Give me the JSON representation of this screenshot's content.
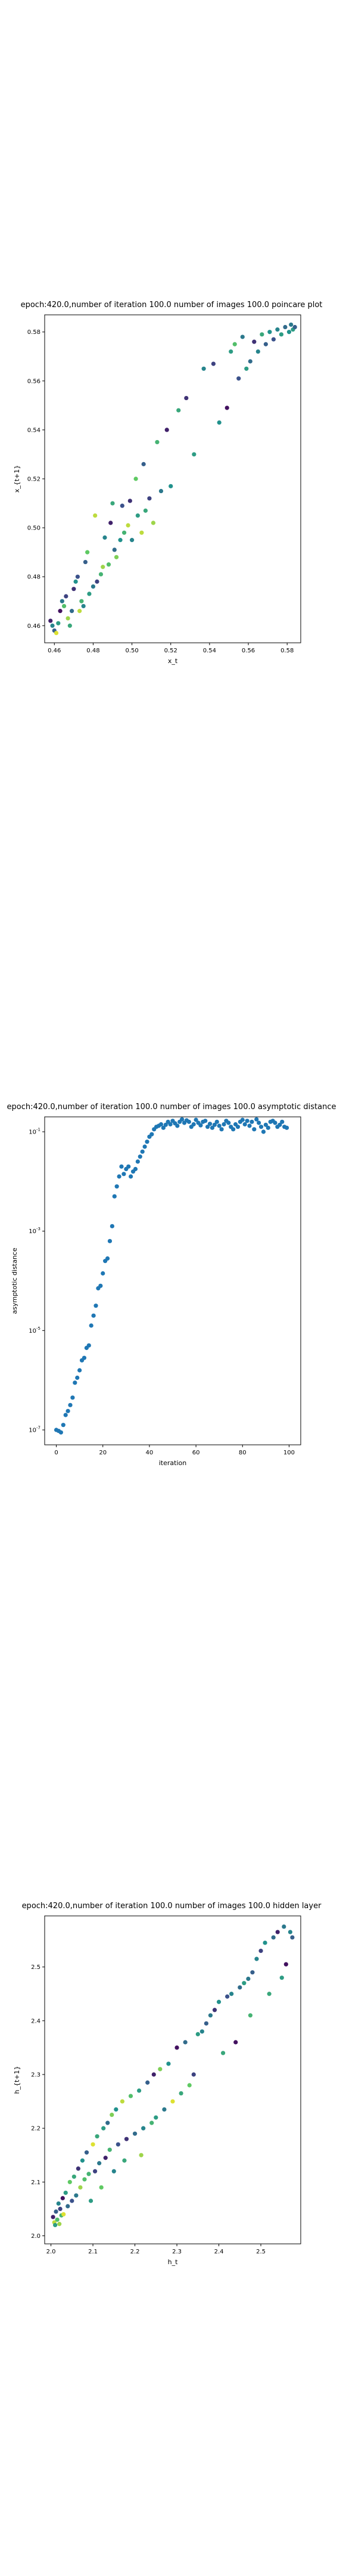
{
  "chart_data": [
    {
      "type": "scatter",
      "title": "epoch:420.0,number of iteration 100.0 number of images 100.0 poincare plot",
      "xlabel": "x_t",
      "ylabel": "x_{t+1}",
      "xlim": [
        0.455,
        0.587
      ],
      "ylim": [
        0.453,
        0.587
      ],
      "xticks": [
        "0.46",
        "0.48",
        "0.50",
        "0.52",
        "0.54",
        "0.56",
        "0.58"
      ],
      "yticks": [
        "0.46",
        "0.48",
        "0.50",
        "0.52",
        "0.54",
        "0.56",
        "0.58"
      ],
      "grid": false,
      "colormap": [
        "#440154",
        "#3b528b",
        "#21918c",
        "#5ec962",
        "#fde725"
      ],
      "points": [
        {
          "x": 0.458,
          "y": 0.462,
          "c": 0.1
        },
        {
          "x": 0.459,
          "y": 0.46,
          "c": 0.45
        },
        {
          "x": 0.46,
          "y": 0.458,
          "c": 0.3
        },
        {
          "x": 0.461,
          "y": 0.457,
          "c": 0.95
        },
        {
          "x": 0.462,
          "y": 0.461,
          "c": 0.55
        },
        {
          "x": 0.463,
          "y": 0.466,
          "c": 0.05
        },
        {
          "x": 0.464,
          "y": 0.47,
          "c": 0.4
        },
        {
          "x": 0.465,
          "y": 0.468,
          "c": 0.7
        },
        {
          "x": 0.466,
          "y": 0.472,
          "c": 0.2
        },
        {
          "x": 0.467,
          "y": 0.463,
          "c": 0.85
        },
        {
          "x": 0.468,
          "y": 0.46,
          "c": 0.6
        },
        {
          "x": 0.469,
          "y": 0.466,
          "c": 0.35
        },
        {
          "x": 0.47,
          "y": 0.475,
          "c": 0.15
        },
        {
          "x": 0.471,
          "y": 0.478,
          "c": 0.5
        },
        {
          "x": 0.472,
          "y": 0.48,
          "c": 0.25
        },
        {
          "x": 0.473,
          "y": 0.466,
          "c": 0.9
        },
        {
          "x": 0.474,
          "y": 0.47,
          "c": 0.65
        },
        {
          "x": 0.475,
          "y": 0.468,
          "c": 0.45
        },
        {
          "x": 0.476,
          "y": 0.486,
          "c": 0.3
        },
        {
          "x": 0.477,
          "y": 0.49,
          "c": 0.75
        },
        {
          "x": 0.478,
          "y": 0.473,
          "c": 0.55
        },
        {
          "x": 0.48,
          "y": 0.476,
          "c": 0.4
        },
        {
          "x": 0.481,
          "y": 0.505,
          "c": 0.9
        },
        {
          "x": 0.482,
          "y": 0.478,
          "c": 0.2
        },
        {
          "x": 0.484,
          "y": 0.481,
          "c": 0.65
        },
        {
          "x": 0.485,
          "y": 0.484,
          "c": 0.85
        },
        {
          "x": 0.486,
          "y": 0.496,
          "c": 0.45
        },
        {
          "x": 0.488,
          "y": 0.485,
          "c": 0.7
        },
        {
          "x": 0.489,
          "y": 0.502,
          "c": 0.1
        },
        {
          "x": 0.49,
          "y": 0.51,
          "c": 0.6
        },
        {
          "x": 0.491,
          "y": 0.491,
          "c": 0.35
        },
        {
          "x": 0.492,
          "y": 0.488,
          "c": 0.8
        },
        {
          "x": 0.494,
          "y": 0.495,
          "c": 0.5
        },
        {
          "x": 0.495,
          "y": 0.509,
          "c": 0.25
        },
        {
          "x": 0.496,
          "y": 0.498,
          "c": 0.65
        },
        {
          "x": 0.498,
          "y": 0.501,
          "c": 0.9
        },
        {
          "x": 0.499,
          "y": 0.511,
          "c": 0.15
        },
        {
          "x": 0.5,
          "y": 0.495,
          "c": 0.45
        },
        {
          "x": 0.502,
          "y": 0.52,
          "c": 0.75
        },
        {
          "x": 0.503,
          "y": 0.505,
          "c": 0.55
        },
        {
          "x": 0.505,
          "y": 0.498,
          "c": 0.9
        },
        {
          "x": 0.506,
          "y": 0.526,
          "c": 0.3
        },
        {
          "x": 0.507,
          "y": 0.507,
          "c": 0.6
        },
        {
          "x": 0.509,
          "y": 0.512,
          "c": 0.2
        },
        {
          "x": 0.511,
          "y": 0.502,
          "c": 0.85
        },
        {
          "x": 0.513,
          "y": 0.535,
          "c": 0.65
        },
        {
          "x": 0.515,
          "y": 0.515,
          "c": 0.4
        },
        {
          "x": 0.518,
          "y": 0.54,
          "c": 0.1
        },
        {
          "x": 0.52,
          "y": 0.517,
          "c": 0.5
        },
        {
          "x": 0.524,
          "y": 0.548,
          "c": 0.6
        },
        {
          "x": 0.528,
          "y": 0.553,
          "c": 0.15
        },
        {
          "x": 0.532,
          "y": 0.53,
          "c": 0.55
        },
        {
          "x": 0.537,
          "y": 0.565,
          "c": 0.45
        },
        {
          "x": 0.542,
          "y": 0.567,
          "c": 0.2
        },
        {
          "x": 0.545,
          "y": 0.543,
          "c": 0.5
        },
        {
          "x": 0.549,
          "y": 0.549,
          "c": 0.05
        },
        {
          "x": 0.551,
          "y": 0.572,
          "c": 0.55
        },
        {
          "x": 0.553,
          "y": 0.575,
          "c": 0.7
        },
        {
          "x": 0.555,
          "y": 0.561,
          "c": 0.25
        },
        {
          "x": 0.557,
          "y": 0.578,
          "c": 0.4
        },
        {
          "x": 0.559,
          "y": 0.565,
          "c": 0.55
        },
        {
          "x": 0.561,
          "y": 0.568,
          "c": 0.35
        },
        {
          "x": 0.563,
          "y": 0.576,
          "c": 0.15
        },
        {
          "x": 0.565,
          "y": 0.572,
          "c": 0.45
        },
        {
          "x": 0.567,
          "y": 0.579,
          "c": 0.6
        },
        {
          "x": 0.569,
          "y": 0.575,
          "c": 0.3
        },
        {
          "x": 0.571,
          "y": 0.58,
          "c": 0.5
        },
        {
          "x": 0.573,
          "y": 0.577,
          "c": 0.25
        },
        {
          "x": 0.575,
          "y": 0.581,
          "c": 0.45
        },
        {
          "x": 0.577,
          "y": 0.579,
          "c": 0.55
        },
        {
          "x": 0.579,
          "y": 0.582,
          "c": 0.35
        },
        {
          "x": 0.581,
          "y": 0.58,
          "c": 0.5
        },
        {
          "x": 0.582,
          "y": 0.583,
          "c": 0.4
        },
        {
          "x": 0.583,
          "y": 0.581,
          "c": 0.55
        },
        {
          "x": 0.584,
          "y": 0.582,
          "c": 0.3
        }
      ]
    },
    {
      "type": "scatter",
      "title": "epoch:420.0,number of iteration 100.0  number of images 100.0 asymptotic distance",
      "xlabel": "iteration",
      "ylabel": "asymptotic distance",
      "xlim": [
        -5,
        105
      ],
      "ylim_log10": [
        -7.3,
        -0.7
      ],
      "yscale": "log",
      "xticks": [
        "0",
        "20",
        "40",
        "60",
        "80",
        "100"
      ],
      "yticks": [
        "10^-7",
        "10^-5",
        "10^-3",
        "10^-1"
      ],
      "grid": false,
      "marker_color": "#1f77b4",
      "log10_values": [
        -7.0,
        -7.02,
        -7.05,
        -6.9,
        -6.7,
        -6.62,
        -6.5,
        -6.35,
        -6.05,
        -5.95,
        -5.8,
        -5.6,
        -5.55,
        -5.35,
        -5.3,
        -4.9,
        -4.7,
        -4.5,
        -4.15,
        -4.1,
        -3.85,
        -3.6,
        -3.55,
        -3.2,
        -2.9,
        -2.3,
        -2.1,
        -1.9,
        -1.7,
        -1.85,
        -1.75,
        -1.7,
        -1.9,
        -1.8,
        -1.75,
        -1.6,
        -1.5,
        -1.4,
        -1.3,
        -1.2,
        -1.1,
        -1.05,
        -0.95,
        -0.9,
        -0.88,
        -0.85,
        -0.92,
        -0.86,
        -0.8,
        -0.85,
        -0.78,
        -0.83,
        -0.88,
        -0.8,
        -0.75,
        -0.82,
        -0.77,
        -0.8,
        -0.9,
        -0.85,
        -0.76,
        -0.82,
        -0.87,
        -0.8,
        -0.78,
        -0.9,
        -0.84,
        -0.92,
        -0.86,
        -0.8,
        -0.88,
        -0.95,
        -0.85,
        -0.78,
        -0.82,
        -0.9,
        -0.95,
        -0.85,
        -0.9,
        -0.8,
        -0.76,
        -0.85,
        -0.78,
        -0.88,
        -0.8,
        -0.95,
        -0.75,
        -0.82,
        -0.9,
        -1.0,
        -0.86,
        -0.92,
        -0.8,
        -0.78,
        -0.82,
        -0.9,
        -0.86,
        -0.8,
        -0.9,
        -0.92
      ]
    },
    {
      "type": "scatter",
      "title": "epoch:420.0,number of iteration 100.0  number of images 100.0 hidden layer",
      "xlabel": "h_t",
      "ylabel": "h_{t+1}",
      "xlim": [
        1.985,
        2.595
      ],
      "ylim": [
        1.985,
        2.595
      ],
      "xticks": [
        "2.0",
        "2.1",
        "2.2",
        "2.3",
        "2.4",
        "2.5"
      ],
      "yticks": [
        "2.0",
        "2.1",
        "2.2",
        "2.3",
        "2.4",
        "2.5"
      ],
      "grid": false,
      "colormap": [
        "#440154",
        "#3b528b",
        "#21918c",
        "#5ec962",
        "#fde725"
      ],
      "points": [
        {
          "x": 2.005,
          "y": 2.035,
          "c": 0.1
        },
        {
          "x": 2.008,
          "y": 2.025,
          "c": 0.9
        },
        {
          "x": 2.01,
          "y": 2.02,
          "c": 0.55
        },
        {
          "x": 2.012,
          "y": 2.045,
          "c": 0.3
        },
        {
          "x": 2.015,
          "y": 2.03,
          "c": 0.7
        },
        {
          "x": 2.018,
          "y": 2.06,
          "c": 0.45
        },
        {
          "x": 2.02,
          "y": 2.022,
          "c": 0.85
        },
        {
          "x": 2.022,
          "y": 2.05,
          "c": 0.2
        },
        {
          "x": 2.025,
          "y": 2.038,
          "c": 0.65
        },
        {
          "x": 2.028,
          "y": 2.07,
          "c": 0.05
        },
        {
          "x": 2.03,
          "y": 2.04,
          "c": 0.95
        },
        {
          "x": 2.035,
          "y": 2.08,
          "c": 0.55
        },
        {
          "x": 2.04,
          "y": 2.055,
          "c": 0.35
        },
        {
          "x": 2.045,
          "y": 2.1,
          "c": 0.75
        },
        {
          "x": 2.05,
          "y": 2.065,
          "c": 0.25
        },
        {
          "x": 2.055,
          "y": 2.11,
          "c": 0.6
        },
        {
          "x": 2.06,
          "y": 2.075,
          "c": 0.4
        },
        {
          "x": 2.065,
          "y": 2.125,
          "c": 0.15
        },
        {
          "x": 2.07,
          "y": 2.09,
          "c": 0.85
        },
        {
          "x": 2.075,
          "y": 2.14,
          "c": 0.5
        },
        {
          "x": 2.08,
          "y": 2.105,
          "c": 0.7
        },
        {
          "x": 2.085,
          "y": 2.155,
          "c": 0.3
        },
        {
          "x": 2.09,
          "y": 2.115,
          "c": 0.65
        },
        {
          "x": 2.095,
          "y": 2.065,
          "c": 0.55
        },
        {
          "x": 2.1,
          "y": 2.17,
          "c": 0.95
        },
        {
          "x": 2.105,
          "y": 2.12,
          "c": 0.2
        },
        {
          "x": 2.11,
          "y": 2.185,
          "c": 0.6
        },
        {
          "x": 2.115,
          "y": 2.135,
          "c": 0.4
        },
        {
          "x": 2.12,
          "y": 2.09,
          "c": 0.75
        },
        {
          "x": 2.125,
          "y": 2.2,
          "c": 0.55
        },
        {
          "x": 2.13,
          "y": 2.145,
          "c": 0.1
        },
        {
          "x": 2.135,
          "y": 2.21,
          "c": 0.35
        },
        {
          "x": 2.14,
          "y": 2.16,
          "c": 0.65
        },
        {
          "x": 2.145,
          "y": 2.225,
          "c": 0.8
        },
        {
          "x": 2.15,
          "y": 2.12,
          "c": 0.45
        },
        {
          "x": 2.155,
          "y": 2.235,
          "c": 0.5
        },
        {
          "x": 2.16,
          "y": 2.17,
          "c": 0.25
        },
        {
          "x": 2.17,
          "y": 2.25,
          "c": 0.9
        },
        {
          "x": 2.175,
          "y": 2.14,
          "c": 0.6
        },
        {
          "x": 2.18,
          "y": 2.18,
          "c": 0.15
        },
        {
          "x": 2.19,
          "y": 2.26,
          "c": 0.7
        },
        {
          "x": 2.2,
          "y": 2.19,
          "c": 0.35
        },
        {
          "x": 2.21,
          "y": 2.27,
          "c": 0.55
        },
        {
          "x": 2.215,
          "y": 2.15,
          "c": 0.85
        },
        {
          "x": 2.22,
          "y": 2.2,
          "c": 0.45
        },
        {
          "x": 2.23,
          "y": 2.285,
          "c": 0.3
        },
        {
          "x": 2.24,
          "y": 2.21,
          "c": 0.65
        },
        {
          "x": 2.245,
          "y": 2.3,
          "c": 0.1
        },
        {
          "x": 2.25,
          "y": 2.22,
          "c": 0.55
        },
        {
          "x": 2.26,
          "y": 2.31,
          "c": 0.8
        },
        {
          "x": 2.27,
          "y": 2.235,
          "c": 0.4
        },
        {
          "x": 2.28,
          "y": 2.32,
          "c": 0.5
        },
        {
          "x": 2.29,
          "y": 2.25,
          "c": 0.95
        },
        {
          "x": 2.3,
          "y": 2.35,
          "c": 0.05
        },
        {
          "x": 2.31,
          "y": 2.265,
          "c": 0.6
        },
        {
          "x": 2.32,
          "y": 2.36,
          "c": 0.35
        },
        {
          "x": 2.33,
          "y": 2.28,
          "c": 0.75
        },
        {
          "x": 2.34,
          "y": 2.3,
          "c": 0.2
        },
        {
          "x": 2.35,
          "y": 2.375,
          "c": 0.55
        },
        {
          "x": 2.36,
          "y": 2.38,
          "c": 0.45
        },
        {
          "x": 2.37,
          "y": 2.395,
          "c": 0.3
        },
        {
          "x": 2.38,
          "y": 2.41,
          "c": 0.4
        },
        {
          "x": 2.39,
          "y": 2.42,
          "c": 0.15
        },
        {
          "x": 2.4,
          "y": 2.435,
          "c": 0.5
        },
        {
          "x": 2.41,
          "y": 2.34,
          "c": 0.6
        },
        {
          "x": 2.42,
          "y": 2.445,
          "c": 0.25
        },
        {
          "x": 2.43,
          "y": 2.45,
          "c": 0.45
        },
        {
          "x": 2.44,
          "y": 2.36,
          "c": 0.05
        },
        {
          "x": 2.45,
          "y": 2.462,
          "c": 0.35
        },
        {
          "x": 2.46,
          "y": 2.47,
          "c": 0.55
        },
        {
          "x": 2.47,
          "y": 2.478,
          "c": 0.4
        },
        {
          "x": 2.475,
          "y": 2.41,
          "c": 0.65
        },
        {
          "x": 2.48,
          "y": 2.49,
          "c": 0.3
        },
        {
          "x": 2.49,
          "y": 2.515,
          "c": 0.45
        },
        {
          "x": 2.5,
          "y": 2.53,
          "c": 0.2
        },
        {
          "x": 2.51,
          "y": 2.545,
          "c": 0.5
        },
        {
          "x": 2.52,
          "y": 2.45,
          "c": 0.6
        },
        {
          "x": 2.53,
          "y": 2.555,
          "c": 0.35
        },
        {
          "x": 2.54,
          "y": 2.565,
          "c": 0.1
        },
        {
          "x": 2.55,
          "y": 2.48,
          "c": 0.55
        },
        {
          "x": 2.555,
          "y": 2.575,
          "c": 0.4
        },
        {
          "x": 2.56,
          "y": 2.505,
          "c": 0.05
        },
        {
          "x": 2.57,
          "y": 2.565,
          "c": 0.45
        },
        {
          "x": 2.575,
          "y": 2.555,
          "c": 0.3
        }
      ]
    }
  ]
}
